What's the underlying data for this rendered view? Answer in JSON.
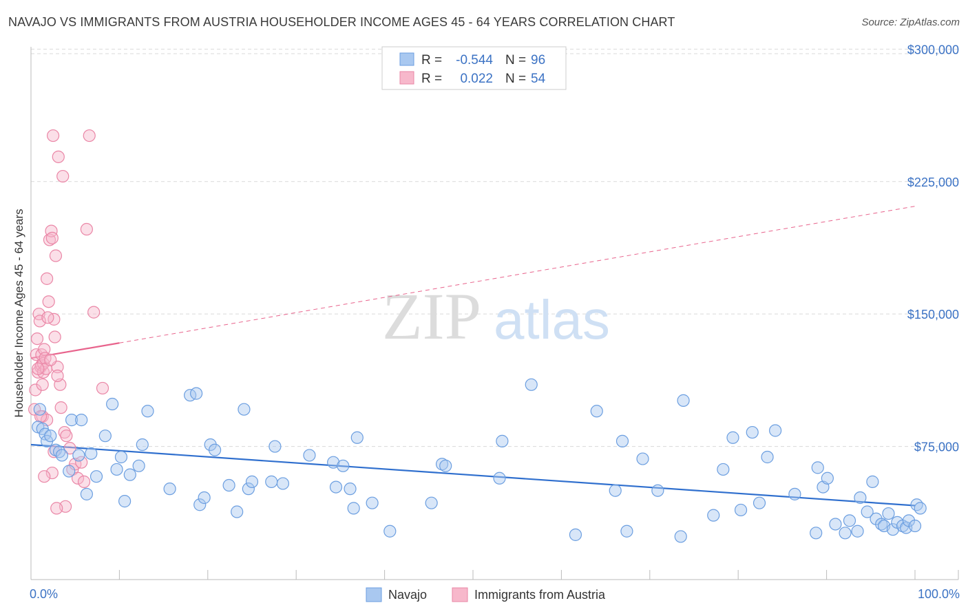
{
  "header": {
    "title": "NAVAJO VS IMMIGRANTS FROM AUSTRIA HOUSEHOLDER INCOME AGES 45 - 64 YEARS CORRELATION CHART",
    "source": "Source: ZipAtlas.com"
  },
  "watermark": {
    "zip": "ZIP",
    "atlas": "atlas"
  },
  "colors": {
    "navajo_fill": "#a9c8f0",
    "navajo_stroke": "#6b9ee0",
    "navajo_line": "#2f6fce",
    "austria_fill": "#f7b8cb",
    "austria_stroke": "#ea86a6",
    "austria_line": "#e8638c",
    "grid": "#d9d9d9",
    "label_blue": "#3b72c4"
  },
  "legend": {
    "rows": [
      {
        "r_label": "R =",
        "r_value": "-0.544",
        "n_label": "N =",
        "n_value": "96"
      },
      {
        "r_label": "R =",
        "r_value": "0.022",
        "n_label": "N =",
        "n_value": "54"
      }
    ]
  },
  "bottom_legend": {
    "navajo": "Navajo",
    "austria": "Immigrants from Austria"
  },
  "chart_data": {
    "type": "scatter",
    "title": "NAVAJO VS IMMIGRANTS FROM AUSTRIA HOUSEHOLDER INCOME AGES 45 - 64 YEARS CORRELATION CHART",
    "xlabel": "",
    "ylabel": "Householder Income Ages 45 - 64 years",
    "xlim": [
      0,
      100
    ],
    "ylim": [
      0,
      310000
    ],
    "x_tick_labels": {
      "left": "0.0%",
      "right": "100.0%"
    },
    "y_ticks": [
      {
        "value": 75000,
        "label": "$75,000"
      },
      {
        "value": 150000,
        "label": "$150,000"
      },
      {
        "value": 225000,
        "label": "$225,000"
      },
      {
        "value": 300000,
        "label": "$300,000"
      }
    ],
    "series": [
      {
        "name": "Navajo",
        "r": -0.544,
        "n": 96,
        "trend": {
          "x": [
            0,
            100
          ],
          "y": [
            76000,
            41500
          ]
        },
        "points": [
          [
            0.8,
            86000
          ],
          [
            1.0,
            96000
          ],
          [
            1.3,
            85000
          ],
          [
            1.6,
            82000
          ],
          [
            1.8,
            78000
          ],
          [
            2.2,
            81000
          ],
          [
            2.8,
            73000
          ],
          [
            3.2,
            72000
          ],
          [
            3.5,
            70000
          ],
          [
            4.3,
            61000
          ],
          [
            4.6,
            90000
          ],
          [
            5.4,
            70000
          ],
          [
            5.7,
            90000
          ],
          [
            6.3,
            48000
          ],
          [
            6.8,
            71000
          ],
          [
            7.4,
            58000
          ],
          [
            8.4,
            81000
          ],
          [
            9.2,
            99000
          ],
          [
            9.7,
            62000
          ],
          [
            10.2,
            69000
          ],
          [
            10.6,
            44000
          ],
          [
            11.2,
            59000
          ],
          [
            12.2,
            64000
          ],
          [
            12.6,
            76000
          ],
          [
            13.2,
            95000
          ],
          [
            15.7,
            51000
          ],
          [
            18.0,
            104000
          ],
          [
            18.7,
            105000
          ],
          [
            19.1,
            42000
          ],
          [
            19.6,
            46000
          ],
          [
            20.3,
            76000
          ],
          [
            20.8,
            73000
          ],
          [
            22.4,
            53000
          ],
          [
            23.3,
            38000
          ],
          [
            24.1,
            96000
          ],
          [
            24.6,
            51000
          ],
          [
            25.0,
            55000
          ],
          [
            27.2,
            55000
          ],
          [
            27.6,
            75000
          ],
          [
            28.5,
            54000
          ],
          [
            31.5,
            70000
          ],
          [
            34.2,
            66000
          ],
          [
            34.5,
            52000
          ],
          [
            35.3,
            64000
          ],
          [
            36.1,
            51000
          ],
          [
            36.5,
            40000
          ],
          [
            36.9,
            80000
          ],
          [
            38.6,
            43000
          ],
          [
            40.6,
            27000
          ],
          [
            45.3,
            43000
          ],
          [
            46.5,
            65000
          ],
          [
            46.9,
            64000
          ],
          [
            53.0,
            57000
          ],
          [
            53.3,
            78000
          ],
          [
            56.6,
            110000
          ],
          [
            61.6,
            25000
          ],
          [
            64.0,
            95000
          ],
          [
            66.1,
            50000
          ],
          [
            66.9,
            78000
          ],
          [
            67.4,
            27000
          ],
          [
            69.2,
            68000
          ],
          [
            70.9,
            50000
          ],
          [
            73.5,
            24000
          ],
          [
            73.8,
            101000
          ],
          [
            77.2,
            36000
          ],
          [
            78.3,
            62000
          ],
          [
            79.4,
            80000
          ],
          [
            80.3,
            39000
          ],
          [
            81.6,
            83000
          ],
          [
            82.4,
            43000
          ],
          [
            83.3,
            69000
          ],
          [
            84.2,
            84000
          ],
          [
            86.4,
            48000
          ],
          [
            88.8,
            26000
          ],
          [
            89.0,
            63000
          ],
          [
            89.6,
            52000
          ],
          [
            90.1,
            57000
          ],
          [
            91.0,
            31000
          ],
          [
            92.1,
            26000
          ],
          [
            92.6,
            33000
          ],
          [
            93.5,
            27000
          ],
          [
            93.8,
            46000
          ],
          [
            94.6,
            38000
          ],
          [
            95.2,
            55000
          ],
          [
            95.6,
            34000
          ],
          [
            96.2,
            31000
          ],
          [
            96.5,
            30000
          ],
          [
            97.0,
            37000
          ],
          [
            97.5,
            28000
          ],
          [
            98.0,
            32000
          ],
          [
            98.6,
            30000
          ],
          [
            99.0,
            29000
          ],
          [
            99.3,
            33000
          ],
          [
            100.0,
            30000
          ],
          [
            100.2,
            42000
          ],
          [
            100.6,
            40000
          ]
        ]
      },
      {
        "name": "Immigrants from Austria",
        "r": 0.022,
        "n": 54,
        "trend": {
          "x": [
            0,
            100
          ],
          "y": [
            125000,
            211000
          ]
        },
        "trend_solid_until_x": 10,
        "points": [
          [
            0.4,
            96000
          ],
          [
            0.5,
            107000
          ],
          [
            0.6,
            127000
          ],
          [
            0.7,
            136000
          ],
          [
            0.8,
            117000
          ],
          [
            0.9,
            150000
          ],
          [
            1.0,
            146000
          ],
          [
            1.1,
            120000
          ],
          [
            1.2,
            127000
          ],
          [
            1.2,
            121000
          ],
          [
            1.3,
            92000
          ],
          [
            1.3,
            110000
          ],
          [
            1.4,
            117000
          ],
          [
            1.4,
            122000
          ],
          [
            1.5,
            130000
          ],
          [
            1.6,
            125000
          ],
          [
            1.7,
            119000
          ],
          [
            1.8,
            90000
          ],
          [
            1.8,
            170000
          ],
          [
            2.0,
            157000
          ],
          [
            2.1,
            192000
          ],
          [
            2.3,
            197000
          ],
          [
            2.4,
            193000
          ],
          [
            2.5,
            251000
          ],
          [
            2.6,
            147000
          ],
          [
            2.7,
            137000
          ],
          [
            2.8,
            183000
          ],
          [
            3.0,
            120000
          ],
          [
            3.1,
            239000
          ],
          [
            3.3,
            110000
          ],
          [
            3.4,
            97000
          ],
          [
            3.6,
            228000
          ],
          [
            3.8,
            83000
          ],
          [
            4.0,
            81000
          ],
          [
            4.4,
            74000
          ],
          [
            4.7,
            62000
          ],
          [
            5.0,
            65000
          ],
          [
            5.3,
            57000
          ],
          [
            5.7,
            66000
          ],
          [
            6.0,
            55000
          ],
          [
            6.3,
            198000
          ],
          [
            6.6,
            251000
          ],
          [
            7.1,
            151000
          ],
          [
            8.1,
            108000
          ],
          [
            1.9,
            148000
          ],
          [
            2.2,
            124000
          ],
          [
            1.1,
            92000
          ],
          [
            0.8,
            119000
          ],
          [
            3.9,
            41000
          ],
          [
            2.9,
            40000
          ],
          [
            2.4,
            60000
          ],
          [
            1.5,
            58000
          ],
          [
            2.6,
            72000
          ],
          [
            3.0,
            115000
          ]
        ]
      }
    ]
  }
}
